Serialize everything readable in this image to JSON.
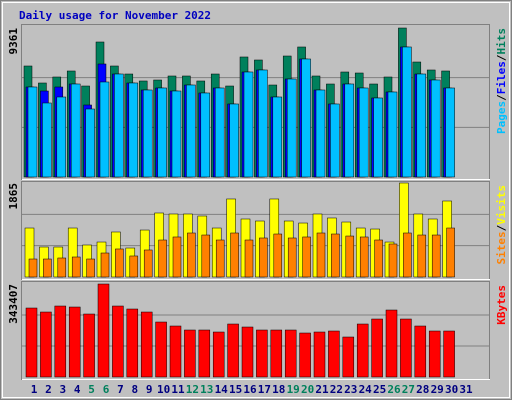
{
  "chart_data": [
    {
      "type": "bar",
      "title": "Daily usage for November 2022",
      "title_color": "#0000c0",
      "ylim": [
        0,
        9361
      ],
      "yticks": [
        9361
      ],
      "separator": "/",
      "series": [
        {
          "name": "Hits",
          "color": "#00805c",
          "values": [
            6974,
            5906,
            6283,
            6660,
            5717,
            8482,
            6974,
            6471,
            6032,
            6094,
            6346,
            6346,
            6032,
            6471,
            5717,
            7540,
            7351,
            5780,
            7602,
            8168,
            6346,
            5843,
            6597,
            6534,
            5843,
            6283,
            9361,
            7225,
            6723,
            6660,
            0
          ]
        },
        {
          "name": "Files",
          "color": "#0000ff",
          "values": [
            5655,
            5403,
            5655,
            5843,
            4524,
            7100,
            6471,
            5906,
            5466,
            5592,
            5403,
            5780,
            5278,
            5592,
            4587,
            6597,
            6723,
            5026,
            6157,
            7414,
            5466,
            4587,
            5843,
            5592,
            4964,
            5341,
            8168,
            6471,
            6094,
            5592,
            0
          ]
        },
        {
          "name": "Pages",
          "color": "#00c0ff",
          "values": [
            5655,
            4649,
            5026,
            5843,
            4272,
            5969,
            6471,
            5906,
            5466,
            5592,
            5403,
            5780,
            5278,
            5592,
            4587,
            6597,
            6723,
            5026,
            6157,
            7414,
            5466,
            4587,
            5843,
            5592,
            4964,
            5341,
            8168,
            6471,
            6094,
            5592,
            0
          ]
        }
      ]
    },
    {
      "type": "bar",
      "ylim": [
        0,
        1865
      ],
      "yticks": [
        1865
      ],
      "separator": "/",
      "series": [
        {
          "name": "Visits",
          "color": "#ffff00",
          "values": [
            972,
            595,
            595,
            972,
            635,
            694,
            893,
            575,
            932,
            1270,
            1250,
            1250,
            1210,
            972,
            1548,
            1151,
            1111,
            1548,
            1111,
            1071,
            1250,
            1171,
            1091,
            972,
            952,
            694,
            1865,
            1250,
            1151,
            1508,
            0
          ]
        },
        {
          "name": "Sites",
          "color": "#ff8000",
          "values": [
            357,
            357,
            377,
            397,
            357,
            476,
            556,
            417,
            536,
            734,
            794,
            873,
            833,
            734,
            873,
            734,
            774,
            853,
            774,
            794,
            873,
            853,
            813,
            794,
            734,
            655,
            873,
            833,
            833,
            972,
            0
          ]
        }
      ]
    },
    {
      "type": "bar",
      "ylim": [
        0,
        343407
      ],
      "yticks": [
        343407
      ],
      "categories": [
        "1",
        "2",
        "3",
        "4",
        "5",
        "6",
        "7",
        "8",
        "9",
        "10",
        "11",
        "12",
        "13",
        "14",
        "15",
        "16",
        "17",
        "18",
        "19",
        "20",
        "21",
        "22",
        "23",
        "24",
        "25",
        "26",
        "27",
        "28",
        "29",
        "30",
        "31"
      ],
      "highlight_categories": [
        "5",
        "6",
        "12",
        "13",
        "19",
        "20",
        "26",
        "27"
      ],
      "highlight_color": "#00805c",
      "label_color": "#000080",
      "series": [
        {
          "name": "KBytes",
          "color": "#ff0000",
          "values": [
            254748,
            239980,
            262132,
            258440,
            232596,
            343407,
            262132,
            251056,
            239980,
            203060,
            188292,
            173524,
            173524,
            166140,
            195676,
            184600,
            173524,
            173524,
            173524,
            162448,
            166140,
            169832,
            147680,
            195676,
            214136,
            247364,
            214136,
            188292,
            169832,
            169832,
            0
          ]
        }
      ]
    }
  ]
}
